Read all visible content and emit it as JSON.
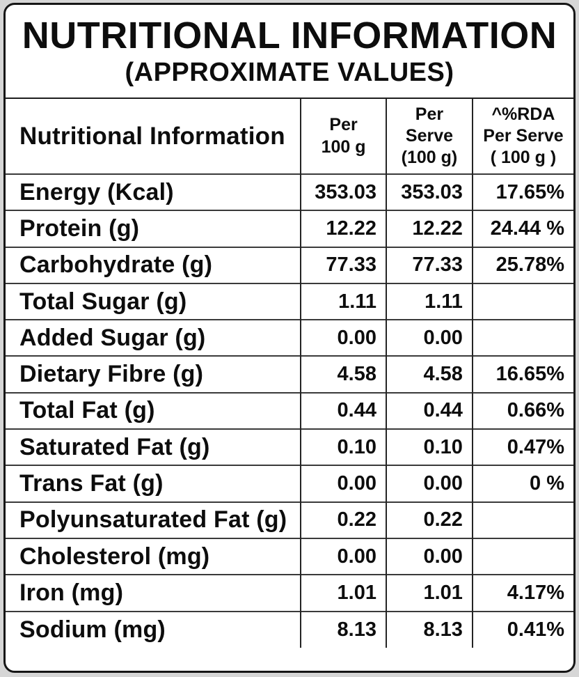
{
  "header": {
    "title": "NUTRITIONAL INFORMATION",
    "subtitle": "(APPROXIMATE VALUES)"
  },
  "table": {
    "columns": [
      "Nutritional Information",
      "Per\n100 g",
      "Per\nServe\n(100 g)",
      "^%RDA\nPer Serve\n( 100 g )"
    ],
    "rows": [
      {
        "nutrient": "Energy (Kcal)",
        "per_100g": "353.03",
        "per_serve": "353.03",
        "rda_per_serve": "17.65%"
      },
      {
        "nutrient": "Protein (g)",
        "per_100g": "12.22",
        "per_serve": "12.22",
        "rda_per_serve": "24.44 %"
      },
      {
        "nutrient": "Carbohydrate (g)",
        "per_100g": "77.33",
        "per_serve": "77.33",
        "rda_per_serve": "25.78%"
      },
      {
        "nutrient": "Total Sugar (g)",
        "per_100g": "1.11",
        "per_serve": "1.11",
        "rda_per_serve": ""
      },
      {
        "nutrient": "Added Sugar (g)",
        "per_100g": "0.00",
        "per_serve": "0.00",
        "rda_per_serve": ""
      },
      {
        "nutrient": "Dietary Fibre (g)",
        "per_100g": "4.58",
        "per_serve": "4.58",
        "rda_per_serve": "16.65%"
      },
      {
        "nutrient": "Total Fat (g)",
        "per_100g": "0.44",
        "per_serve": "0.44",
        "rda_per_serve": "0.66%"
      },
      {
        "nutrient": "Saturated Fat (g)",
        "per_100g": "0.10",
        "per_serve": "0.10",
        "rda_per_serve": "0.47%"
      },
      {
        "nutrient": "Trans Fat (g)",
        "per_100g": "0.00",
        "per_serve": "0.00",
        "rda_per_serve": "0 %"
      },
      {
        "nutrient": "Polyunsaturated Fat (g)",
        "per_100g": "0.22",
        "per_serve": "0.22",
        "rda_per_serve": ""
      },
      {
        "nutrient": "Cholesterol (mg)",
        "per_100g": "0.00",
        "per_serve": "0.00",
        "rda_per_serve": ""
      },
      {
        "nutrient": "Iron (mg)",
        "per_100g": "1.01",
        "per_serve": "1.01",
        "rda_per_serve": "4.17%"
      },
      {
        "nutrient": "Sodium (mg)",
        "per_100g": "8.13",
        "per_serve": "8.13",
        "rda_per_serve": "0.41%"
      }
    ]
  },
  "colors": {
    "page_background": "#d6d6d6",
    "label_background": "#ffffff",
    "outer_border": "#161616",
    "grid_line": "#3a3a3a",
    "text": "#0d0d0d"
  }
}
